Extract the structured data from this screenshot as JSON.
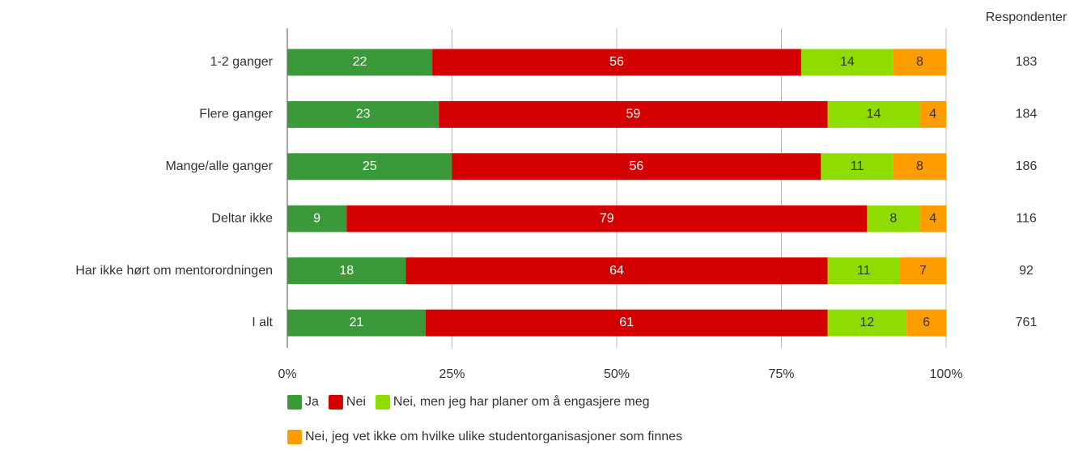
{
  "chart_data": {
    "type": "stacked_barh",
    "categories": [
      "1-2 ganger",
      "Flere ganger",
      "Mange/alle ganger",
      "Deltar ikke",
      "Har ikke hørt om mentorordningen",
      "I alt"
    ],
    "series": [
      {
        "name": "Ja",
        "color": "#3a9a3a",
        "label_color": "#ffffff",
        "values": [
          22,
          23,
          25,
          9,
          18,
          21
        ]
      },
      {
        "name": "Nei",
        "color": "#d40000",
        "label_color": "#ffffff",
        "values": [
          56,
          59,
          56,
          79,
          64,
          61
        ]
      },
      {
        "name": "Nei, men jeg har planer om å engasjere meg",
        "color": "#8fdc00",
        "label_color": "#333333",
        "values": [
          14,
          14,
          11,
          8,
          11,
          12
        ]
      },
      {
        "name": "Nei, jeg vet ikke om hvilke ulike studentorganisasjoner som finnes",
        "color": "#ff9c00",
        "label_color": "#333333",
        "values": [
          8,
          4,
          8,
          4,
          7,
          6
        ]
      }
    ],
    "xlim": [
      0,
      100
    ],
    "xticks": [
      {
        "value": 0,
        "label": "0%"
      },
      {
        "value": 25,
        "label": "25%"
      },
      {
        "value": 50,
        "label": "50%"
      },
      {
        "value": 75,
        "label": "75%"
      },
      {
        "value": 100,
        "label": "100%"
      }
    ],
    "grid": true,
    "legend": "bottom",
    "respondents": {
      "title": "Respondenter",
      "values": [
        183,
        184,
        186,
        116,
        92,
        761
      ]
    }
  }
}
